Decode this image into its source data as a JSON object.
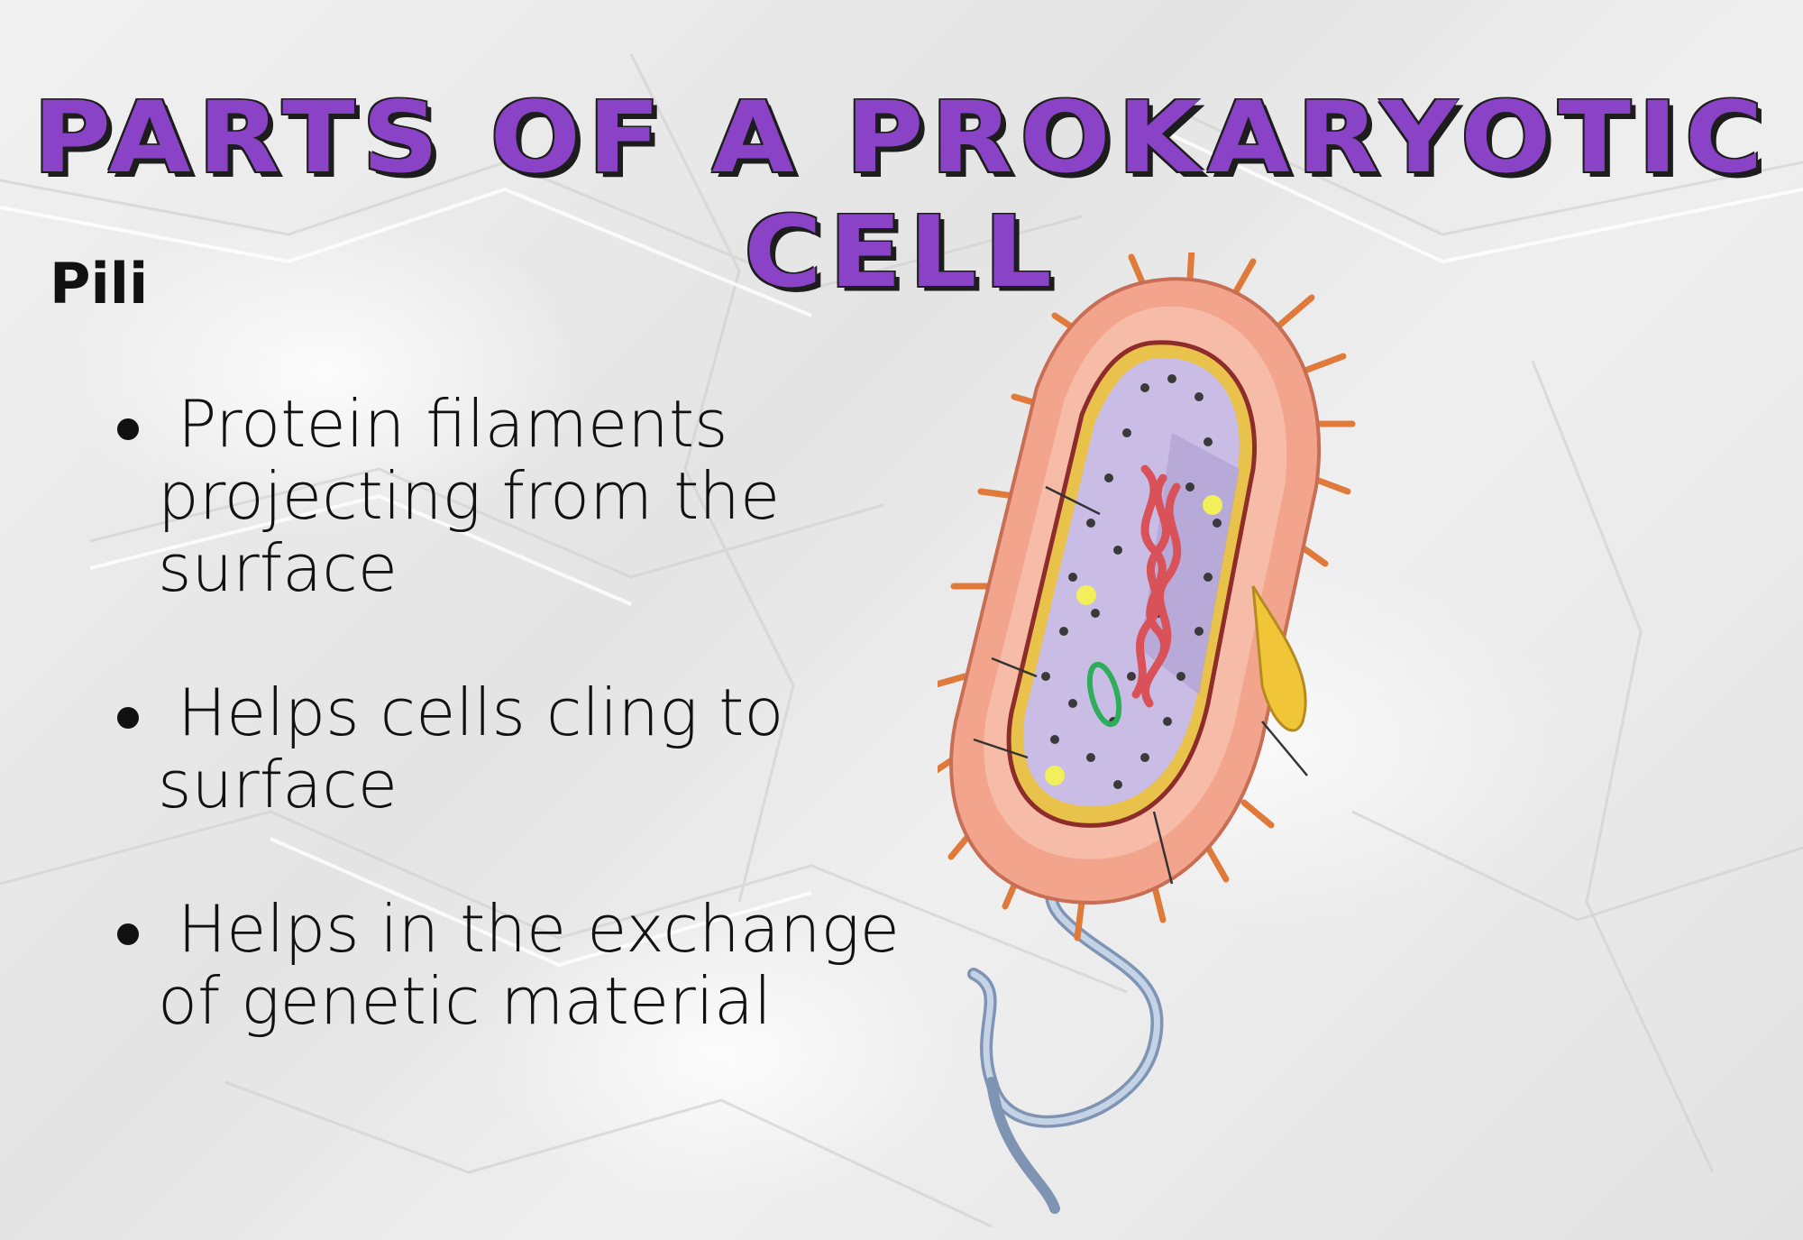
{
  "slide": {
    "title": "PARTS OF A PROKARYOTIC CELL",
    "heading": "Pili",
    "bullets": [
      "Protein filaments projecting from the surface",
      "Helps cells cling to surface",
      "Helps in the exchange of genetic material"
    ]
  },
  "colors": {
    "title": "#8a43c7",
    "title_shadow": "#1d1d1d",
    "text": "#111111",
    "cell_wall": "#f2a48c",
    "pili": "#e07a3a",
    "cytoplasm": "#c9bde6",
    "nucleoid": "#d9525a",
    "flagellum": "#9fb3cf"
  },
  "icons": {
    "illustration": "bacterium-cell-diagram"
  }
}
